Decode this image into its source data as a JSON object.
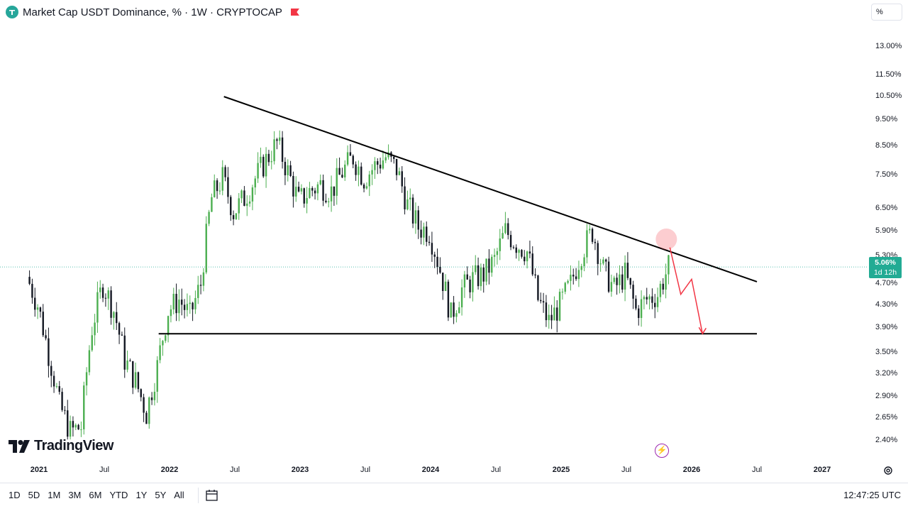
{
  "header": {
    "title": "Market Cap USDT Dominance, % · 1W · CRYPTOCAP",
    "scale_button": "%"
  },
  "colors": {
    "up": "#4caf50",
    "down": "#131722",
    "accent": "#22ab94",
    "annotation": "#f23645"
  },
  "chart_data": {
    "type": "candlestick",
    "y_axis": {
      "scale": "log",
      "unit": "%",
      "ticks": [
        "13.00%",
        "11.50%",
        "10.50%",
        "9.50%",
        "8.50%",
        "7.50%",
        "6.50%",
        "5.90%",
        "5.30%",
        "4.70%",
        "4.30%",
        "3.90%",
        "3.50%",
        "3.20%",
        "2.90%",
        "2.65%",
        "2.40%"
      ],
      "ylim": [
        2.2,
        14.5
      ]
    },
    "x_axis": {
      "ticks": [
        "2021",
        "Jul",
        "2022",
        "Jul",
        "2023",
        "Jul",
        "2024",
        "Jul",
        "2025",
        "Jul",
        "2026",
        "Jul",
        "2027"
      ]
    },
    "last_value": "5.06%",
    "countdown": "1d 12h",
    "close_series": [
      {
        "date": "2020-12",
        "v": 4.85
      },
      {
        "date": "2021-01",
        "v": 4.3
      },
      {
        "date": "2021-02",
        "v": 3.5
      },
      {
        "date": "2021-03",
        "v": 2.8
      },
      {
        "date": "2021-04",
        "v": 2.5
      },
      {
        "date": "2021-05",
        "v": 2.55
      },
      {
        "date": "2021-06",
        "v": 3.9
      },
      {
        "date": "2021-07",
        "v": 4.7
      },
      {
        "date": "2021-08",
        "v": 4.2
      },
      {
        "date": "2021-09",
        "v": 3.4
      },
      {
        "date": "2021-10",
        "v": 3.1
      },
      {
        "date": "2021-11",
        "v": 2.7
      },
      {
        "date": "2021-12",
        "v": 3.3
      },
      {
        "date": "2022-01",
        "v": 4.2
      },
      {
        "date": "2022-02",
        "v": 4.4
      },
      {
        "date": "2022-03",
        "v": 4.1
      },
      {
        "date": "2022-04",
        "v": 4.7
      },
      {
        "date": "2022-05",
        "v": 6.8
      },
      {
        "date": "2022-06",
        "v": 7.4
      },
      {
        "date": "2022-07",
        "v": 6.4
      },
      {
        "date": "2022-08",
        "v": 6.8
      },
      {
        "date": "2022-09",
        "v": 7.4
      },
      {
        "date": "2022-10",
        "v": 8.0
      },
      {
        "date": "2022-11",
        "v": 8.6
      },
      {
        "date": "2022-12",
        "v": 7.6
      },
      {
        "date": "2023-01",
        "v": 6.7
      },
      {
        "date": "2023-02",
        "v": 7.0
      },
      {
        "date": "2023-03",
        "v": 7.2
      },
      {
        "date": "2023-04",
        "v": 7.0
      },
      {
        "date": "2023-05",
        "v": 7.6
      },
      {
        "date": "2023-06",
        "v": 8.1
      },
      {
        "date": "2023-07",
        "v": 7.4
      },
      {
        "date": "2023-08",
        "v": 7.8
      },
      {
        "date": "2023-09",
        "v": 8.1
      },
      {
        "date": "2023-10",
        "v": 7.7
      },
      {
        "date": "2023-11",
        "v": 6.6
      },
      {
        "date": "2023-12",
        "v": 6.0
      },
      {
        "date": "2024-01",
        "v": 5.9
      },
      {
        "date": "2024-02",
        "v": 5.0
      },
      {
        "date": "2024-03",
        "v": 4.1
      },
      {
        "date": "2024-04",
        "v": 4.6
      },
      {
        "date": "2024-05",
        "v": 4.8
      },
      {
        "date": "2024-06",
        "v": 4.9
      },
      {
        "date": "2024-07",
        "v": 5.2
      },
      {
        "date": "2024-08",
        "v": 5.9
      },
      {
        "date": "2024-09",
        "v": 5.6
      },
      {
        "date": "2024-10",
        "v": 5.4
      },
      {
        "date": "2024-11",
        "v": 4.4
      },
      {
        "date": "2024-12",
        "v": 4.0
      },
      {
        "date": "2025-01",
        "v": 4.3
      },
      {
        "date": "2025-02",
        "v": 4.7
      },
      {
        "date": "2025-03",
        "v": 5.4
      },
      {
        "date": "2025-04",
        "v": 5.9
      },
      {
        "date": "2025-05",
        "v": 5.0
      },
      {
        "date": "2025-06",
        "v": 4.6
      },
      {
        "date": "2025-07",
        "v": 4.9
      },
      {
        "date": "2025-08",
        "v": 4.2
      },
      {
        "date": "2025-09",
        "v": 4.4
      },
      {
        "date": "2025-10",
        "v": 4.5
      },
      {
        "date": "2025-11",
        "v": 5.06
      }
    ],
    "annotations": [
      {
        "kind": "trendline",
        "name": "descending resistance",
        "from": {
          "date": "2022-06",
          "v": 10.5
        },
        "to": {
          "date": "2026-07",
          "v": 4.75
        }
      },
      {
        "kind": "trendline",
        "name": "horizontal support",
        "from": {
          "date": "2021-12",
          "v": 3.8
        },
        "to": {
          "date": "2026-07",
          "v": 3.8
        }
      },
      {
        "kind": "arrow",
        "name": "projected path",
        "points": [
          {
            "date": "2025-11",
            "v": 5.5
          },
          {
            "date": "2025-12",
            "v": 4.5
          },
          {
            "date": "2026-01",
            "v": 4.8
          },
          {
            "date": "2026-02",
            "v": 3.8
          }
        ]
      },
      {
        "kind": "marker",
        "name": "touch point",
        "at": {
          "date": "2025-11",
          "v": 5.7
        }
      }
    ]
  },
  "branding": {
    "logo_text": "TradingView"
  },
  "footer": {
    "ranges": [
      "1D",
      "5D",
      "1M",
      "3M",
      "6M",
      "YTD",
      "1Y",
      "5Y",
      "All"
    ],
    "time": "12:47:25 UTC"
  }
}
